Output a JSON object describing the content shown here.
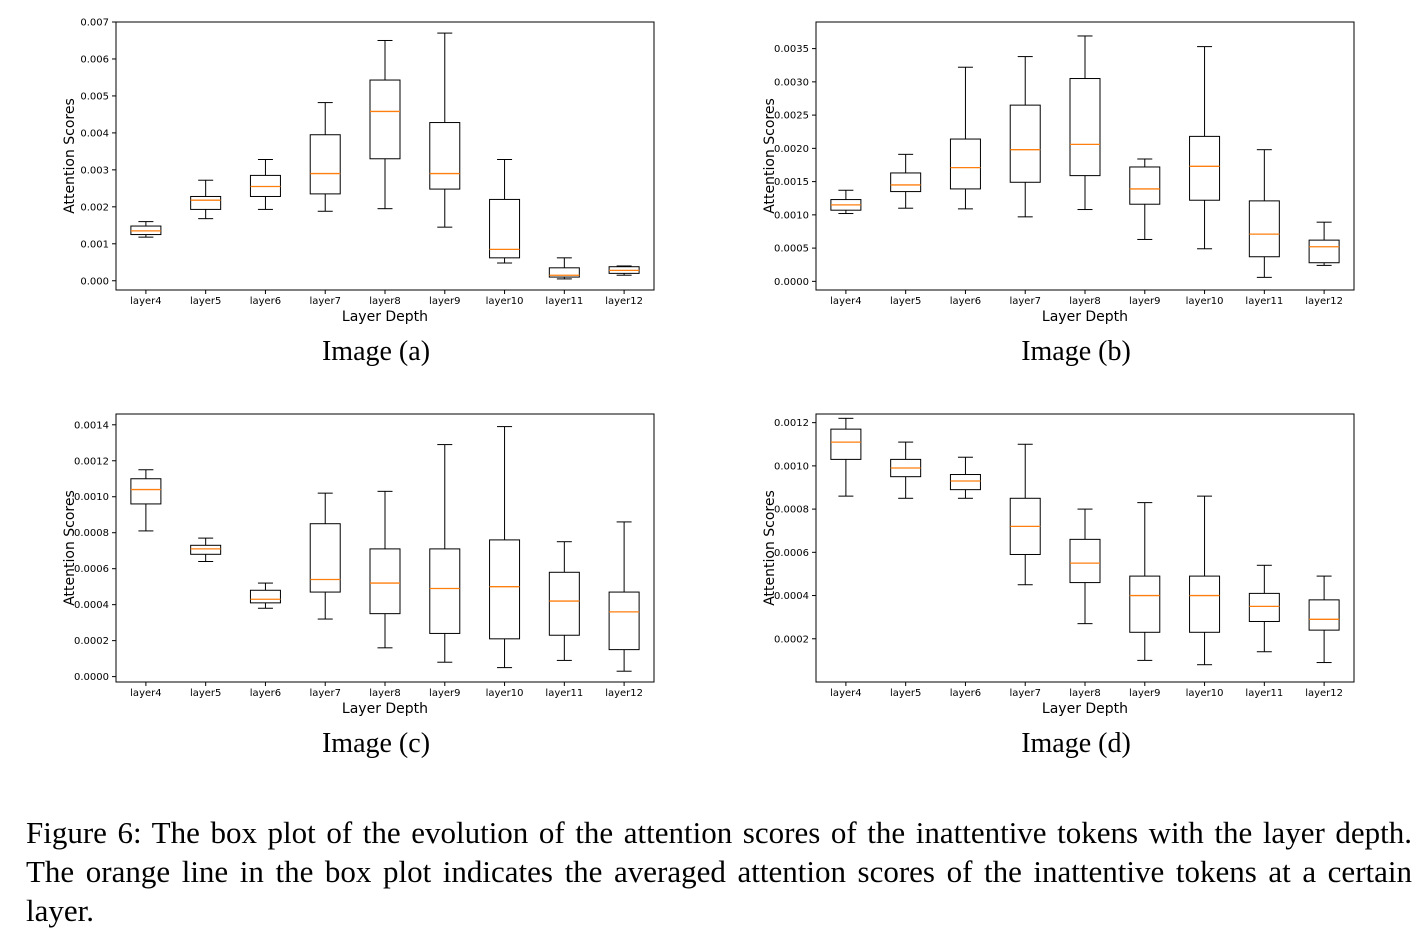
{
  "figure": {
    "label": "Figure 6:",
    "caption": "The box plot of the evolution of the attention scores of the inattentive tokens with the layer depth. The orange line in the box plot indicates the averaged attention scores of the inattentive tokens at a certain layer."
  },
  "colors": {
    "median": "#ff7f0e",
    "box": "#000000"
  },
  "chart_data": [
    {
      "id": "a",
      "type": "box",
      "subcaption": "Image (a)",
      "xlabel": "Layer Depth",
      "ylabel": "Attention Scores",
      "categories": [
        "layer4",
        "layer5",
        "layer6",
        "layer7",
        "layer8",
        "layer9",
        "layer10",
        "layer11",
        "layer12"
      ],
      "ylim": [
        -0.00025,
        0.007
      ],
      "yticks": [
        0.0,
        0.001,
        0.002,
        0.003,
        0.004,
        0.005,
        0.006,
        0.007
      ],
      "ytick_labels": [
        "0.000",
        "0.001",
        "0.002",
        "0.003",
        "0.004",
        "0.005",
        "0.006",
        "0.007"
      ],
      "boxes": [
        {
          "whislo": 0.00118,
          "q1": 0.00125,
          "med": 0.00135,
          "q3": 0.00148,
          "whishi": 0.0016
        },
        {
          "whislo": 0.00168,
          "q1": 0.00193,
          "med": 0.00218,
          "q3": 0.00228,
          "whishi": 0.00272
        },
        {
          "whislo": 0.00193,
          "q1": 0.00228,
          "med": 0.00255,
          "q3": 0.00285,
          "whishi": 0.00328
        },
        {
          "whislo": 0.00188,
          "q1": 0.00235,
          "med": 0.0029,
          "q3": 0.00395,
          "whishi": 0.00482
        },
        {
          "whislo": 0.00195,
          "q1": 0.0033,
          "med": 0.00458,
          "q3": 0.00543,
          "whishi": 0.0065
        },
        {
          "whislo": 0.00145,
          "q1": 0.00248,
          "med": 0.0029,
          "q3": 0.00428,
          "whishi": 0.0067
        },
        {
          "whislo": 0.00048,
          "q1": 0.00062,
          "med": 0.00085,
          "q3": 0.0022,
          "whishi": 0.00328
        },
        {
          "whislo": 5e-05,
          "q1": 0.0001,
          "med": 0.00015,
          "q3": 0.00035,
          "whishi": 0.00062
        },
        {
          "whislo": 0.00015,
          "q1": 0.0002,
          "med": 0.00028,
          "q3": 0.00038,
          "whishi": 0.0004
        }
      ]
    },
    {
      "id": "b",
      "type": "box",
      "subcaption": "Image (b)",
      "xlabel": "Layer Depth",
      "ylabel": "Attention Scores",
      "categories": [
        "layer4",
        "layer5",
        "layer6",
        "layer7",
        "layer8",
        "layer9",
        "layer10",
        "layer11",
        "layer12"
      ],
      "ylim": [
        -0.00013,
        0.0039
      ],
      "yticks": [
        0.0,
        0.0005,
        0.001,
        0.0015,
        0.002,
        0.0025,
        0.003,
        0.0035
      ],
      "ytick_labels": [
        "0.0000",
        "0.0005",
        "0.0010",
        "0.0015",
        "0.0020",
        "0.0025",
        "0.0030",
        "0.0035"
      ],
      "boxes": [
        {
          "whislo": 0.00102,
          "q1": 0.00107,
          "med": 0.00115,
          "q3": 0.00123,
          "whishi": 0.00137
        },
        {
          "whislo": 0.0011,
          "q1": 0.00135,
          "med": 0.00145,
          "q3": 0.00163,
          "whishi": 0.00191
        },
        {
          "whislo": 0.00109,
          "q1": 0.00139,
          "med": 0.00171,
          "q3": 0.00214,
          "whishi": 0.00322
        },
        {
          "whislo": 0.00097,
          "q1": 0.00149,
          "med": 0.00198,
          "q3": 0.00265,
          "whishi": 0.00338
        },
        {
          "whislo": 0.00108,
          "q1": 0.00159,
          "med": 0.00206,
          "q3": 0.00305,
          "whishi": 0.00369
        },
        {
          "whislo": 0.00063,
          "q1": 0.00116,
          "med": 0.00139,
          "q3": 0.00172,
          "whishi": 0.00184
        },
        {
          "whislo": 0.00049,
          "q1": 0.00122,
          "med": 0.00173,
          "q3": 0.00218,
          "whishi": 0.00353
        },
        {
          "whislo": 6e-05,
          "q1": 0.00037,
          "med": 0.00071,
          "q3": 0.00121,
          "whishi": 0.00198
        },
        {
          "whislo": 0.00024,
          "q1": 0.00028,
          "med": 0.00052,
          "q3": 0.00062,
          "whishi": 0.00089
        }
      ]
    },
    {
      "id": "c",
      "type": "box",
      "subcaption": "Image (c)",
      "xlabel": "Layer Depth",
      "ylabel": "Attention Scores",
      "categories": [
        "layer4",
        "layer5",
        "layer6",
        "layer7",
        "layer8",
        "layer9",
        "layer10",
        "layer11",
        "layer12"
      ],
      "ylim": [
        -3e-05,
        0.00146
      ],
      "yticks": [
        0.0,
        0.0002,
        0.0004,
        0.0006,
        0.0008,
        0.001,
        0.0012,
        0.0014
      ],
      "ytick_labels": [
        "0.0000",
        "0.0002",
        "0.0004",
        "0.0006",
        "0.0008",
        "0.0010",
        "0.0012",
        "0.0014"
      ],
      "boxes": [
        {
          "whislo": 0.00081,
          "q1": 0.00096,
          "med": 0.00104,
          "q3": 0.0011,
          "whishi": 0.00115
        },
        {
          "whislo": 0.00064,
          "q1": 0.00068,
          "med": 0.00071,
          "q3": 0.00073,
          "whishi": 0.00077
        },
        {
          "whislo": 0.00038,
          "q1": 0.00041,
          "med": 0.00043,
          "q3": 0.00048,
          "whishi": 0.00052
        },
        {
          "whislo": 0.00032,
          "q1": 0.00047,
          "med": 0.00054,
          "q3": 0.00085,
          "whishi": 0.00102
        },
        {
          "whislo": 0.00016,
          "q1": 0.00035,
          "med": 0.00052,
          "q3": 0.00071,
          "whishi": 0.00103
        },
        {
          "whislo": 8e-05,
          "q1": 0.00024,
          "med": 0.00049,
          "q3": 0.00071,
          "whishi": 0.00129
        },
        {
          "whislo": 5e-05,
          "q1": 0.00021,
          "med": 0.0005,
          "q3": 0.00076,
          "whishi": 0.00139
        },
        {
          "whislo": 9e-05,
          "q1": 0.00023,
          "med": 0.00042,
          "q3": 0.00058,
          "whishi": 0.00075
        },
        {
          "whislo": 3e-05,
          "q1": 0.00015,
          "med": 0.00036,
          "q3": 0.00047,
          "whishi": 0.00086
        }
      ]
    },
    {
      "id": "d",
      "type": "box",
      "subcaption": "Image (d)",
      "xlabel": "Layer Depth",
      "ylabel": "Attention Scores",
      "categories": [
        "layer4",
        "layer5",
        "layer6",
        "layer7",
        "layer8",
        "layer9",
        "layer10",
        "layer11",
        "layer12"
      ],
      "ylim": [
        0.0,
        0.00124
      ],
      "yticks": [
        0.0002,
        0.0004,
        0.0006,
        0.0008,
        0.001,
        0.0012
      ],
      "ytick_labels": [
        "0.0002",
        "0.0004",
        "0.0006",
        "0.0008",
        "0.0010",
        "0.0012"
      ],
      "boxes": [
        {
          "whislo": 0.00086,
          "q1": 0.00103,
          "med": 0.00111,
          "q3": 0.00117,
          "whishi": 0.00122
        },
        {
          "whislo": 0.00085,
          "q1": 0.00095,
          "med": 0.00099,
          "q3": 0.00103,
          "whishi": 0.00111
        },
        {
          "whislo": 0.00085,
          "q1": 0.00089,
          "med": 0.00093,
          "q3": 0.00096,
          "whishi": 0.00104
        },
        {
          "whislo": 0.00045,
          "q1": 0.00059,
          "med": 0.00072,
          "q3": 0.00085,
          "whishi": 0.0011
        },
        {
          "whislo": 0.00027,
          "q1": 0.00046,
          "med": 0.00055,
          "q3": 0.00066,
          "whishi": 0.0008
        },
        {
          "whislo": 0.0001,
          "q1": 0.00023,
          "med": 0.0004,
          "q3": 0.00049,
          "whishi": 0.00083
        },
        {
          "whislo": 8e-05,
          "q1": 0.00023,
          "med": 0.0004,
          "q3": 0.00049,
          "whishi": 0.00086
        },
        {
          "whislo": 0.00014,
          "q1": 0.00028,
          "med": 0.00035,
          "q3": 0.00041,
          "whishi": 0.00054
        },
        {
          "whislo": 9e-05,
          "q1": 0.00024,
          "med": 0.00029,
          "q3": 0.00038,
          "whishi": 0.00049
        }
      ]
    }
  ]
}
